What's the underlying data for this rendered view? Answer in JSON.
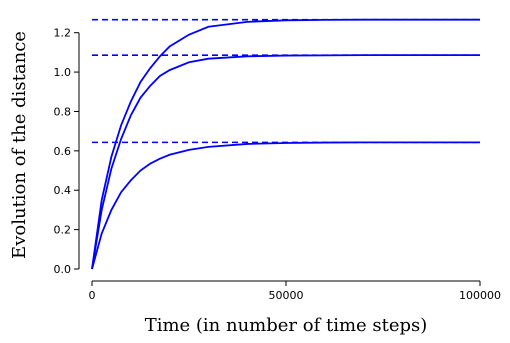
{
  "chart_data": {
    "type": "line",
    "xlabel": "Time (in number of time steps)",
    "ylabel": "Evolution of the distance",
    "xlim": [
      0,
      100000
    ],
    "ylim": [
      0,
      1.3
    ],
    "x_ticks": [
      0,
      50000,
      100000
    ],
    "x_tick_labels": [
      "0",
      "50000",
      "100000"
    ],
    "y_ticks": [
      0.0,
      0.2,
      0.4,
      0.6,
      0.8,
      1.0,
      1.2
    ],
    "y_tick_labels": [
      "0.0",
      "0.2",
      "0.4",
      "0.6",
      "0.8",
      "1.0",
      "1.2"
    ],
    "grid": false,
    "color": "#0000ff",
    "series": [
      {
        "line_style": "solid",
        "x": [
          0,
          2500,
          5000,
          7500,
          10000,
          12500,
          15000,
          17500,
          20000,
          25000,
          30000,
          40000,
          50000,
          60000,
          70000,
          80000,
          90000,
          100000
        ],
        "y": [
          0.0,
          0.35,
          0.57,
          0.73,
          0.85,
          0.95,
          1.02,
          1.08,
          1.13,
          1.19,
          1.23,
          1.255,
          1.263,
          1.265,
          1.266,
          1.266,
          1.266,
          1.266
        ]
      },
      {
        "line_style": "solid",
        "x": [
          0,
          2500,
          5000,
          7500,
          10000,
          12500,
          15000,
          17500,
          20000,
          25000,
          30000,
          40000,
          50000,
          60000,
          70000,
          80000,
          90000,
          100000
        ],
        "y": [
          0.0,
          0.3,
          0.51,
          0.66,
          0.78,
          0.87,
          0.93,
          0.98,
          1.01,
          1.05,
          1.068,
          1.08,
          1.084,
          1.085,
          1.086,
          1.086,
          1.086,
          1.086
        ]
      },
      {
        "line_style": "solid",
        "x": [
          0,
          2500,
          5000,
          7500,
          10000,
          12500,
          15000,
          17500,
          20000,
          25000,
          30000,
          40000,
          50000,
          60000,
          70000,
          80000,
          90000,
          100000
        ],
        "y": [
          0.0,
          0.18,
          0.3,
          0.39,
          0.45,
          0.5,
          0.535,
          0.56,
          0.58,
          0.605,
          0.62,
          0.635,
          0.64,
          0.642,
          0.643,
          0.643,
          0.643,
          0.643
        ]
      },
      {
        "line_style": "dashed",
        "x": [
          0,
          100000
        ],
        "y": [
          1.266,
          1.266
        ]
      },
      {
        "line_style": "dashed",
        "x": [
          0,
          100000
        ],
        "y": [
          1.086,
          1.086
        ]
      },
      {
        "line_style": "dashed",
        "x": [
          0,
          100000
        ],
        "y": [
          0.643,
          0.643
        ]
      }
    ]
  }
}
